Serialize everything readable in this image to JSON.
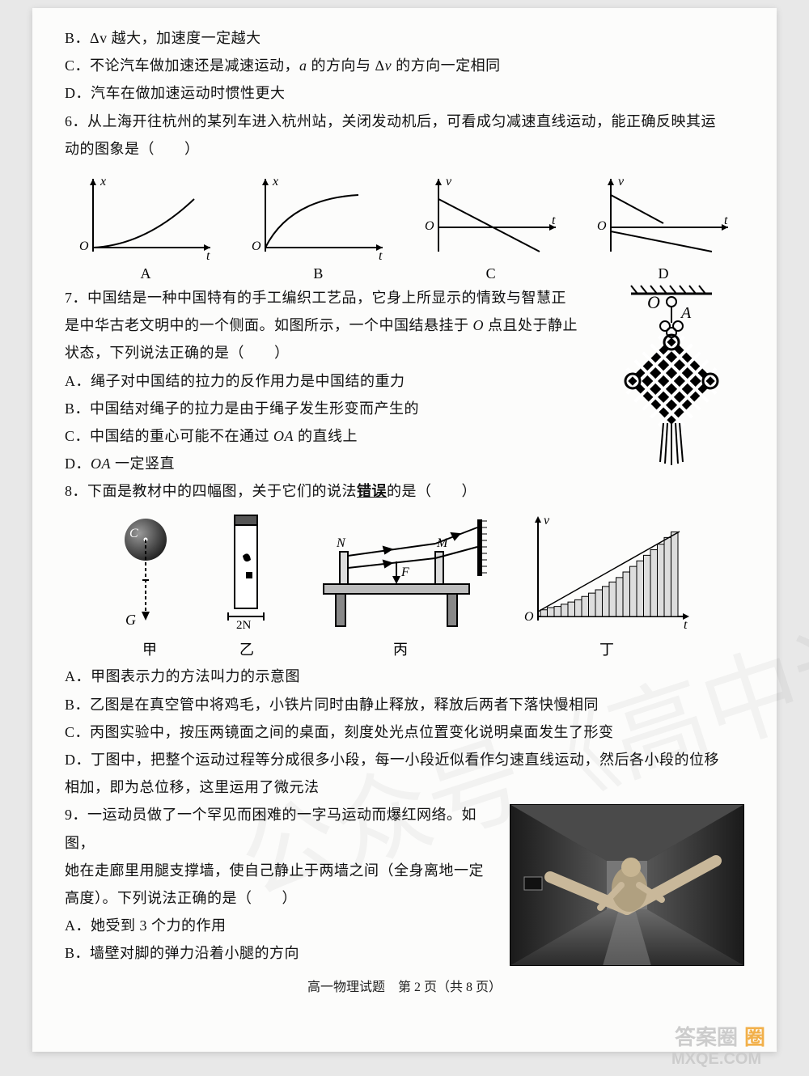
{
  "q5": {
    "optB": "B．Δv 越大，加速度一定越大",
    "optC_pre": "C．不论汽车做加速还是减速运动，",
    "optC_a": "a",
    "optC_mid": " 的方向与 Δ",
    "optC_v": "v",
    "optC_post": " 的方向一定相同",
    "optD": "D．汽车在做加速运动时惯性更大"
  },
  "q6": {
    "stem_pre": "6．从上海开往杭州的某列车进入杭州站，关闭发动机后，可看成匀减速直线运动，能正确反映其运",
    "stem_post": "动的图象是（　　）",
    "charts": {
      "A": {
        "label": "A",
        "xlabel": "t",
        "ylabel": "x",
        "type": "concave-up"
      },
      "B": {
        "label": "B",
        "xlabel": "t",
        "ylabel": "x",
        "type": "concave-down"
      },
      "C": {
        "label": "C",
        "xlabel": "t",
        "ylabel": "v",
        "type": "line-flat-decline"
      },
      "D": {
        "label": "D",
        "xlabel": "t",
        "ylabel": "v",
        "type": "two-decline"
      }
    },
    "axis_color": "#000000",
    "curve_color": "#000000",
    "line_width": 2
  },
  "q7": {
    "l1_pre": "7．中国结是一种中国特有的手工编织工艺品，它身上所显示的情致与智慧正",
    "l2_pre": "是中华古老文明中的一个侧面。如图所示，一个中国结悬挂于 ",
    "l2_O": "O",
    "l2_post": " 点且处于静止",
    "l3": "状态，下列说法正确的是（　　）",
    "optA": "A．绳子对中国结的拉力的反作用力是中国结的重力",
    "optB": "B．中国结对绳子的拉力是由于绳子发生形变而产生的",
    "optC_pre": "C．中国结的重心可能不在通过 ",
    "optC_OA": "OA",
    "optC_post": " 的直线上",
    "optD_pre": "D．",
    "optD_OA": "OA",
    "optD_post": " 一定竖直",
    "knot": {
      "O_label": "O",
      "A_label": "A",
      "ceiling_color": "#000000",
      "knot_color": "#000000"
    }
  },
  "q8": {
    "stem_pre": "8．下面是教材中的四幅图，关于它们的说法",
    "stem_err": "错误",
    "stem_post": "的是（　　）",
    "figs": {
      "jia": {
        "label": "甲",
        "G": "G",
        "C": "C"
      },
      "yi": {
        "label": "乙",
        "scale": "2N"
      },
      "bing": {
        "label": "丙",
        "M": "M",
        "N": "N",
        "F": "F"
      },
      "ding": {
        "label": "丁",
        "xlabel": "t",
        "ylabel": "v",
        "bars": [
          6,
          8,
          9,
          11,
          13,
          15,
          18,
          21,
          24,
          27,
          31,
          35,
          40,
          45,
          50,
          55,
          60,
          65,
          71,
          76
        ],
        "bar_color": "#dddddd",
        "bar_stroke": "#000000",
        "axis_color": "#000000",
        "ylim": 80
      }
    },
    "optA": "A．甲图表示力的方法叫力的示意图",
    "optB": "B．乙图是在真空管中将鸡毛，小铁片同时由静止释放，释放后两者下落快慢相同",
    "optC": "C．丙图实验中，按压两镜面之间的桌面，刻度处光点位置变化说明桌面发生了形变",
    "optD1": "D．丁图中，把整个运动过程等分成很多小段，每一小段近似看作匀速直线运动，然后各小段的位移",
    "optD2": "相加，即为总位移，这里运用了微元法"
  },
  "q9": {
    "l1": "9．一运动员做了一个罕见而困难的一字马运动而爆红网络。如图，",
    "l2": "她在走廊里用腿支撑墙，使自己静止于两墙之间（全身离地一定",
    "l3": "高度）。下列说法正确的是（　　）",
    "optA": "A．她受到 3 个力的作用",
    "optB": "B．墙壁对脚的弹力沿着小腿的方向"
  },
  "footer": "高一物理试题　第 2 页（共 8 页）",
  "watermark": {
    "line1": "答案圈",
    "url": "MXQE.COM",
    "color_main": "#2fa84a",
    "color_orange": "#f08a1e"
  },
  "diag_watermark": "公众号《高中试卷资料下载》"
}
